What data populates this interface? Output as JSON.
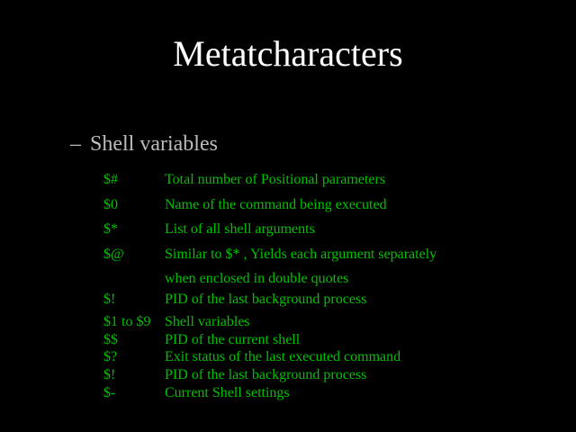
{
  "slide": {
    "title": "Metatcharacters",
    "bullet_marker": "–",
    "bullet_text": "Shell variables",
    "colors": {
      "background": "#000000",
      "title_text": "#ffffff",
      "bullet_text": "#bdbdbd",
      "variable_text": "#00c200"
    },
    "entries": [
      {
        "symbol": "$#",
        "description": "Total number of Positional parameters"
      },
      {
        "symbol": "$0",
        "description": "Name of the command being executed"
      },
      {
        "symbol": "$*",
        "description": "List of all shell arguments"
      },
      {
        "symbol": "$@",
        "description": "Similar to $* , Yields each argument separately",
        "description2": "when enclosed in double quotes"
      },
      {
        "symbol": "$!",
        "description": "PID of the last background process"
      },
      {
        "symbol": "$1 to $9",
        "description": "Shell variables"
      },
      {
        "symbol": "$$",
        "description": "PID of the current shell"
      },
      {
        "symbol": "$?",
        "description": "Exit status of the last executed command"
      },
      {
        "symbol": "$!",
        "description": "PID of the last background process"
      },
      {
        "symbol": "$-",
        "description": "Current Shell settings"
      }
    ]
  }
}
